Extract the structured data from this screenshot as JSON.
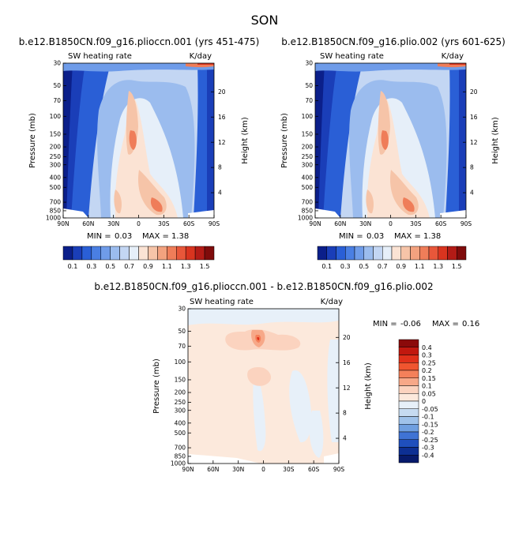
{
  "figure": {
    "season": "SON"
  },
  "chart_data": [
    {
      "type": "heatmap",
      "title": "b.e12.B1850CN.f09_g16.plioccn.001 (yrs 451-475)",
      "field_label": "SW heating rate",
      "units": "K/day",
      "xlabel": "",
      "ylabel": "Pressure (mb)",
      "ylabel_right": "Height (km)",
      "x_ticks": [
        "90N",
        "60N",
        "30N",
        "0",
        "30S",
        "60S",
        "90S"
      ],
      "y_ticks": [
        "30",
        "50",
        "70",
        "100",
        "150",
        "200",
        "250",
        "300",
        "400",
        "500",
        "700",
        "850",
        "1000"
      ],
      "height_ticks": [
        "20",
        "16",
        "12",
        "8",
        "4"
      ],
      "stats": {
        "min_label": "MIN =",
        "min": "0.03",
        "max_label": "MAX =",
        "max": "1.38"
      },
      "colorbar": {
        "orientation": "horizontal",
        "labels": [
          "0.1",
          "0.3",
          "0.5",
          "0.7",
          "0.9",
          "1.1",
          "1.3",
          "1.5"
        ],
        "colors": [
          "#0b1f8a",
          "#1a3eb8",
          "#2a5fd6",
          "#4a7fe3",
          "#6f9ce9",
          "#9bbcee",
          "#c3d6f3",
          "#e6eff9",
          "#fbe3d4",
          "#f6c4a8",
          "#f3a27f",
          "#ef7d59",
          "#e8573a",
          "#d9341f",
          "#b31b16",
          "#7f0b0b"
        ]
      },
      "max_region": "tropical lower/mid troposphere near 10-20S, ~1.3 K/day"
    },
    {
      "type": "heatmap",
      "title": "b.e12.B1850CN.f09_g16.plio.002 (yrs 601-625)",
      "field_label": "SW heating rate",
      "units": "K/day",
      "xlabel": "",
      "ylabel": "Pressure (mb)",
      "ylabel_right": "Height (km)",
      "x_ticks": [
        "90N",
        "60N",
        "30N",
        "0",
        "30S",
        "60S",
        "90S"
      ],
      "y_ticks": [
        "30",
        "50",
        "70",
        "100",
        "150",
        "200",
        "250",
        "300",
        "400",
        "500",
        "700",
        "850",
        "1000"
      ],
      "height_ticks": [
        "20",
        "16",
        "12",
        "8",
        "4"
      ],
      "stats": {
        "min_label": "MIN =",
        "min": "0.03",
        "max_label": "MAX =",
        "max": "1.38"
      },
      "colorbar": {
        "orientation": "horizontal",
        "labels": [
          "0.1",
          "0.3",
          "0.5",
          "0.7",
          "0.9",
          "1.1",
          "1.3",
          "1.5"
        ],
        "colors": [
          "#0b1f8a",
          "#1a3eb8",
          "#2a5fd6",
          "#4a7fe3",
          "#6f9ce9",
          "#9bbcee",
          "#c3d6f3",
          "#e6eff9",
          "#fbe3d4",
          "#f6c4a8",
          "#f3a27f",
          "#ef7d59",
          "#e8573a",
          "#d9341f",
          "#b31b16",
          "#7f0b0b"
        ]
      }
    },
    {
      "type": "heatmap",
      "title": "b.e12.B1850CN.f09_g16.plioccn.001 - b.e12.B1850CN.f09_g16.plio.002",
      "field_label": "SW heating rate",
      "units": "K/day",
      "xlabel": "",
      "ylabel": "Pressure (mb)",
      "ylabel_right": "Height (km)",
      "x_ticks": [
        "90N",
        "60N",
        "30N",
        "0",
        "30S",
        "60S",
        "90S"
      ],
      "y_ticks": [
        "30",
        "50",
        "70",
        "100",
        "150",
        "200",
        "250",
        "300",
        "400",
        "500",
        "700",
        "850",
        "1000"
      ],
      "height_ticks": [
        "20",
        "16",
        "12",
        "8",
        "4"
      ],
      "stats": {
        "min_label": "MIN =",
        "min": "-0.06",
        "max_label": "MAX =",
        "max": "0.16"
      },
      "colorbar": {
        "orientation": "vertical",
        "labels": [
          "0.4",
          "0.3",
          "0.25",
          "0.2",
          "0.15",
          "0.1",
          "0.05",
          "0",
          "-0.05",
          "-0.1",
          "-0.15",
          "-0.2",
          "-0.25",
          "-0.3",
          "-0.4"
        ],
        "colors": [
          "#8b0a0a",
          "#c1180f",
          "#e0301a",
          "#f0552f",
          "#f4805a",
          "#f7a888",
          "#fbd3bf",
          "#fce9dc",
          "#e7f0f9",
          "#c6dbf1",
          "#9fc2ea",
          "#6f9fe0",
          "#3f73d4",
          "#1f4fbd",
          "#0d2f93",
          "#071a6b"
        ]
      }
    }
  ]
}
